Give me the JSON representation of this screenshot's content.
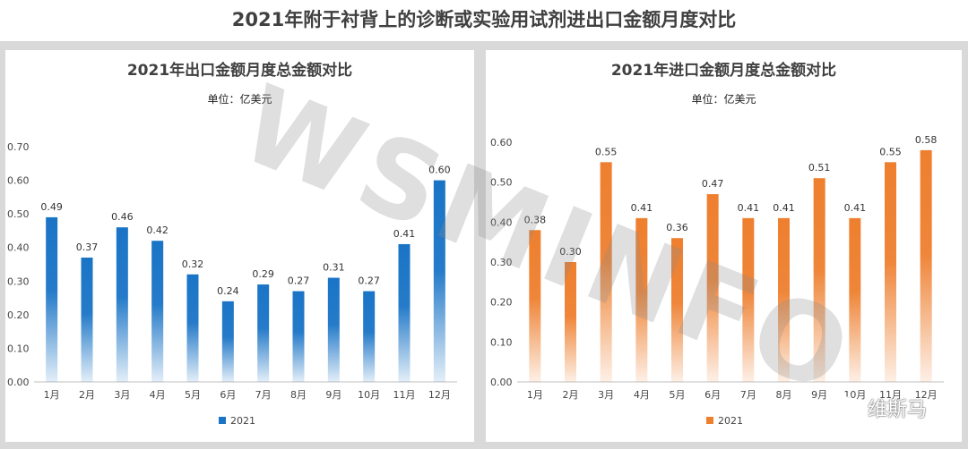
{
  "header": {
    "title": "2021年附于衬背上的诊断或实验用试剂进出口金额月度对比"
  },
  "watermark": "WSMINFO",
  "footer_brand": "维斯马",
  "chart_data": [
    {
      "type": "bar",
      "title": "2021年出口金额月度总金额对比",
      "subtitle": "单位：亿美元",
      "categories": [
        "1月",
        "2月",
        "3月",
        "4月",
        "5月",
        "6月",
        "7月",
        "8月",
        "9月",
        "10月",
        "11月",
        "12月"
      ],
      "series": [
        {
          "name": "2021",
          "values": [
            0.49,
            0.37,
            0.46,
            0.42,
            0.32,
            0.24,
            0.29,
            0.27,
            0.31,
            0.27,
            0.41,
            0.6
          ],
          "color": "#1a74c6"
        }
      ],
      "ylim": [
        0,
        0.7
      ],
      "yticks": [
        "0.00",
        "0.10",
        "0.20",
        "0.30",
        "0.40",
        "0.50",
        "0.60",
        "0.70"
      ],
      "legend": "bottom",
      "grid": false
    },
    {
      "type": "bar",
      "title": "2021年进口金额月度总金额对比",
      "subtitle": "单位：亿美元",
      "categories": [
        "1月",
        "2月",
        "3月",
        "4月",
        "5月",
        "6月",
        "7月",
        "8月",
        "9月",
        "10月",
        "11月",
        "12月"
      ],
      "series": [
        {
          "name": "2021",
          "values": [
            0.38,
            0.3,
            0.55,
            0.41,
            0.36,
            0.47,
            0.41,
            0.41,
            0.51,
            0.41,
            0.55,
            0.58
          ],
          "color": "#ee7f2f"
        }
      ],
      "ylim": [
        0,
        0.6
      ],
      "yticks": [
        "0.00",
        "0.10",
        "0.20",
        "0.30",
        "0.40",
        "0.50",
        "0.60"
      ],
      "legend": "bottom",
      "grid": false
    }
  ]
}
